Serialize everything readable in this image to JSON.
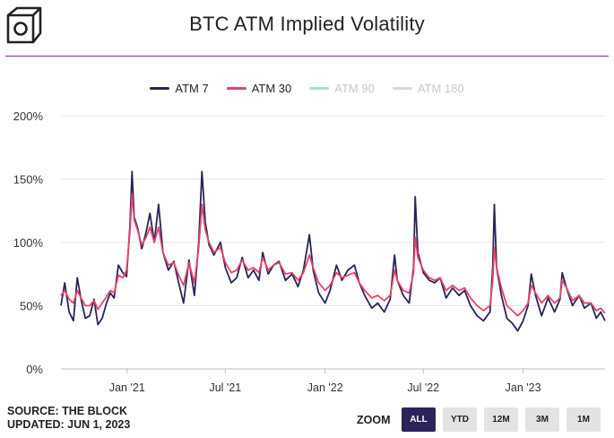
{
  "header": {
    "title": "BTC ATM Implied Volatility"
  },
  "legend": [
    {
      "label": "ATM 7",
      "color": "#2a2458",
      "visible": true
    },
    {
      "label": "ATM 30",
      "color": "#e8426a",
      "visible": true
    },
    {
      "label": "ATM 90",
      "color": "#a8e0d8",
      "visible": false
    },
    {
      "label": "ATM 180",
      "color": "#d6dadd",
      "visible": false
    }
  ],
  "footer": {
    "source": "SOURCE: THE BLOCK",
    "updated": "UPDATED: JUN 1, 2023"
  },
  "zoom": {
    "label": "ZOOM",
    "buttons": [
      "ALL",
      "YTD",
      "12M",
      "3M",
      "1M"
    ],
    "active": "ALL"
  },
  "chart_data": {
    "type": "line",
    "title": "BTC ATM Implied Volatility",
    "xlabel": "",
    "ylabel": "",
    "ylim": [
      0,
      200
    ],
    "yticks": [
      "0%",
      "50%",
      "100%",
      "150%",
      "200%"
    ],
    "xlim": [
      "2020-09-01",
      "2023-06-01"
    ],
    "xticks": [
      {
        "date": "2021-01-01",
        "label": "Jan '21"
      },
      {
        "date": "2021-07-01",
        "label": "Jul '21"
      },
      {
        "date": "2022-01-01",
        "label": "Jan '22"
      },
      {
        "date": "2022-07-01",
        "label": "Jul '22"
      },
      {
        "date": "2023-01-01",
        "label": "Jan '23"
      }
    ],
    "grid": "horizontal",
    "legend_position": "top-center",
    "series": [
      {
        "name": "ATM 7",
        "color": "#2a2458",
        "points": [
          [
            "2020-09-01",
            50
          ],
          [
            "2020-09-08",
            68
          ],
          [
            "2020-09-16",
            45
          ],
          [
            "2020-09-24",
            38
          ],
          [
            "2020-10-01",
            72
          ],
          [
            "2020-10-08",
            55
          ],
          [
            "2020-10-16",
            40
          ],
          [
            "2020-10-24",
            42
          ],
          [
            "2020-11-01",
            55
          ],
          [
            "2020-11-08",
            35
          ],
          [
            "2020-11-16",
            40
          ],
          [
            "2020-11-24",
            52
          ],
          [
            "2020-12-01",
            60
          ],
          [
            "2020-12-08",
            56
          ],
          [
            "2020-12-16",
            82
          ],
          [
            "2020-12-24",
            76
          ],
          [
            "2020-12-31",
            73
          ],
          [
            "2021-01-06",
            112
          ],
          [
            "2021-01-10",
            156
          ],
          [
            "2021-01-14",
            120
          ],
          [
            "2021-01-20",
            112
          ],
          [
            "2021-01-28",
            95
          ],
          [
            "2021-02-05",
            108
          ],
          [
            "2021-02-12",
            123
          ],
          [
            "2021-02-20",
            100
          ],
          [
            "2021-02-28",
            130
          ],
          [
            "2021-03-08",
            92
          ],
          [
            "2021-03-18",
            78
          ],
          [
            "2021-03-28",
            85
          ],
          [
            "2021-04-06",
            68
          ],
          [
            "2021-04-15",
            52
          ],
          [
            "2021-04-25",
            86
          ],
          [
            "2021-05-05",
            58
          ],
          [
            "2021-05-13",
            100
          ],
          [
            "2021-05-19",
            156
          ],
          [
            "2021-05-25",
            116
          ],
          [
            "2021-06-01",
            98
          ],
          [
            "2021-06-10",
            90
          ],
          [
            "2021-06-22",
            100
          ],
          [
            "2021-07-01",
            80
          ],
          [
            "2021-07-12",
            68
          ],
          [
            "2021-07-22",
            72
          ],
          [
            "2021-08-01",
            88
          ],
          [
            "2021-08-12",
            72
          ],
          [
            "2021-08-22",
            78
          ],
          [
            "2021-09-01",
            70
          ],
          [
            "2021-09-08",
            92
          ],
          [
            "2021-09-18",
            75
          ],
          [
            "2021-09-28",
            82
          ],
          [
            "2021-10-08",
            85
          ],
          [
            "2021-10-20",
            70
          ],
          [
            "2021-11-01",
            75
          ],
          [
            "2021-11-12",
            65
          ],
          [
            "2021-11-22",
            78
          ],
          [
            "2021-12-03",
            106
          ],
          [
            "2021-12-10",
            78
          ],
          [
            "2021-12-20",
            60
          ],
          [
            "2022-01-01",
            52
          ],
          [
            "2022-01-10",
            62
          ],
          [
            "2022-01-22",
            82
          ],
          [
            "2022-02-01",
            70
          ],
          [
            "2022-02-12",
            78
          ],
          [
            "2022-02-24",
            82
          ],
          [
            "2022-03-05",
            68
          ],
          [
            "2022-03-15",
            58
          ],
          [
            "2022-03-28",
            48
          ],
          [
            "2022-04-08",
            52
          ],
          [
            "2022-04-20",
            45
          ],
          [
            "2022-05-01",
            55
          ],
          [
            "2022-05-09",
            90
          ],
          [
            "2022-05-14",
            70
          ],
          [
            "2022-05-25",
            58
          ],
          [
            "2022-06-05",
            52
          ],
          [
            "2022-06-13",
            80
          ],
          [
            "2022-06-16",
            136
          ],
          [
            "2022-06-21",
            92
          ],
          [
            "2022-07-01",
            76
          ],
          [
            "2022-07-12",
            70
          ],
          [
            "2022-07-22",
            68
          ],
          [
            "2022-08-01",
            72
          ],
          [
            "2022-08-12",
            56
          ],
          [
            "2022-08-24",
            64
          ],
          [
            "2022-09-05",
            58
          ],
          [
            "2022-09-15",
            62
          ],
          [
            "2022-09-26",
            50
          ],
          [
            "2022-10-08",
            42
          ],
          [
            "2022-10-20",
            38
          ],
          [
            "2022-11-01",
            45
          ],
          [
            "2022-11-06",
            80
          ],
          [
            "2022-11-09",
            130
          ],
          [
            "2022-11-13",
            80
          ],
          [
            "2022-11-22",
            58
          ],
          [
            "2022-12-02",
            40
          ],
          [
            "2022-12-12",
            36
          ],
          [
            "2022-12-22",
            30
          ],
          [
            "2023-01-01",
            38
          ],
          [
            "2023-01-10",
            50
          ],
          [
            "2023-01-16",
            75
          ],
          [
            "2023-01-24",
            58
          ],
          [
            "2023-02-04",
            42
          ],
          [
            "2023-02-16",
            56
          ],
          [
            "2023-02-28",
            45
          ],
          [
            "2023-03-10",
            55
          ],
          [
            "2023-03-14",
            76
          ],
          [
            "2023-03-22",
            64
          ],
          [
            "2023-04-02",
            50
          ],
          [
            "2023-04-14",
            58
          ],
          [
            "2023-04-24",
            48
          ],
          [
            "2023-05-06",
            52
          ],
          [
            "2023-05-16",
            40
          ],
          [
            "2023-05-24",
            45
          ],
          [
            "2023-06-01",
            38
          ]
        ]
      },
      {
        "name": "ATM 30",
        "color": "#e8426a",
        "points": [
          [
            "2020-09-01",
            58
          ],
          [
            "2020-09-08",
            62
          ],
          [
            "2020-09-16",
            55
          ],
          [
            "2020-09-24",
            52
          ],
          [
            "2020-10-01",
            62
          ],
          [
            "2020-10-08",
            56
          ],
          [
            "2020-10-16",
            50
          ],
          [
            "2020-10-24",
            50
          ],
          [
            "2020-11-01",
            54
          ],
          [
            "2020-11-08",
            47
          ],
          [
            "2020-11-16",
            52
          ],
          [
            "2020-11-24",
            57
          ],
          [
            "2020-12-01",
            62
          ],
          [
            "2020-12-08",
            60
          ],
          [
            "2020-12-16",
            74
          ],
          [
            "2020-12-24",
            72
          ],
          [
            "2020-12-31",
            78
          ],
          [
            "2021-01-06",
            108
          ],
          [
            "2021-01-10",
            138
          ],
          [
            "2021-01-14",
            118
          ],
          [
            "2021-01-20",
            110
          ],
          [
            "2021-01-28",
            98
          ],
          [
            "2021-02-05",
            104
          ],
          [
            "2021-02-12",
            112
          ],
          [
            "2021-02-20",
            100
          ],
          [
            "2021-02-28",
            112
          ],
          [
            "2021-03-08",
            92
          ],
          [
            "2021-03-18",
            82
          ],
          [
            "2021-03-28",
            84
          ],
          [
            "2021-04-06",
            74
          ],
          [
            "2021-04-15",
            66
          ],
          [
            "2021-04-25",
            84
          ],
          [
            "2021-05-05",
            68
          ],
          [
            "2021-05-13",
            96
          ],
          [
            "2021-05-19",
            130
          ],
          [
            "2021-05-25",
            110
          ],
          [
            "2021-06-01",
            100
          ],
          [
            "2021-06-10",
            92
          ],
          [
            "2021-06-22",
            96
          ],
          [
            "2021-07-01",
            84
          ],
          [
            "2021-07-12",
            76
          ],
          [
            "2021-07-22",
            78
          ],
          [
            "2021-08-01",
            86
          ],
          [
            "2021-08-12",
            78
          ],
          [
            "2021-08-22",
            80
          ],
          [
            "2021-09-01",
            76
          ],
          [
            "2021-09-08",
            88
          ],
          [
            "2021-09-18",
            78
          ],
          [
            "2021-09-28",
            82
          ],
          [
            "2021-10-08",
            84
          ],
          [
            "2021-10-20",
            75
          ],
          [
            "2021-11-01",
            76
          ],
          [
            "2021-11-12",
            70
          ],
          [
            "2021-11-22",
            76
          ],
          [
            "2021-12-03",
            90
          ],
          [
            "2021-12-10",
            80
          ],
          [
            "2021-12-20",
            68
          ],
          [
            "2022-01-01",
            62
          ],
          [
            "2022-01-10",
            66
          ],
          [
            "2022-01-22",
            76
          ],
          [
            "2022-02-01",
            72
          ],
          [
            "2022-02-12",
            74
          ],
          [
            "2022-02-24",
            76
          ],
          [
            "2022-03-05",
            68
          ],
          [
            "2022-03-15",
            62
          ],
          [
            "2022-03-28",
            56
          ],
          [
            "2022-04-08",
            58
          ],
          [
            "2022-04-20",
            54
          ],
          [
            "2022-05-01",
            58
          ],
          [
            "2022-05-09",
            78
          ],
          [
            "2022-05-14",
            70
          ],
          [
            "2022-05-25",
            62
          ],
          [
            "2022-06-05",
            60
          ],
          [
            "2022-06-13",
            76
          ],
          [
            "2022-06-16",
            104
          ],
          [
            "2022-06-21",
            88
          ],
          [
            "2022-07-01",
            78
          ],
          [
            "2022-07-12",
            72
          ],
          [
            "2022-07-22",
            70
          ],
          [
            "2022-08-01",
            72
          ],
          [
            "2022-08-12",
            62
          ],
          [
            "2022-08-24",
            66
          ],
          [
            "2022-09-05",
            62
          ],
          [
            "2022-09-15",
            64
          ],
          [
            "2022-09-26",
            56
          ],
          [
            "2022-10-08",
            50
          ],
          [
            "2022-10-20",
            46
          ],
          [
            "2022-11-01",
            50
          ],
          [
            "2022-11-06",
            70
          ],
          [
            "2022-11-09",
            96
          ],
          [
            "2022-11-13",
            80
          ],
          [
            "2022-11-22",
            64
          ],
          [
            "2022-12-02",
            50
          ],
          [
            "2022-12-12",
            46
          ],
          [
            "2022-12-22",
            42
          ],
          [
            "2023-01-01",
            46
          ],
          [
            "2023-01-10",
            52
          ],
          [
            "2023-01-16",
            66
          ],
          [
            "2023-01-24",
            60
          ],
          [
            "2023-02-04",
            52
          ],
          [
            "2023-02-16",
            58
          ],
          [
            "2023-02-28",
            52
          ],
          [
            "2023-03-10",
            56
          ],
          [
            "2023-03-14",
            70
          ],
          [
            "2023-03-22",
            64
          ],
          [
            "2023-04-02",
            54
          ],
          [
            "2023-04-14",
            58
          ],
          [
            "2023-04-24",
            52
          ],
          [
            "2023-05-06",
            52
          ],
          [
            "2023-05-16",
            46
          ],
          [
            "2023-05-24",
            48
          ],
          [
            "2023-06-01",
            44
          ]
        ]
      }
    ]
  }
}
